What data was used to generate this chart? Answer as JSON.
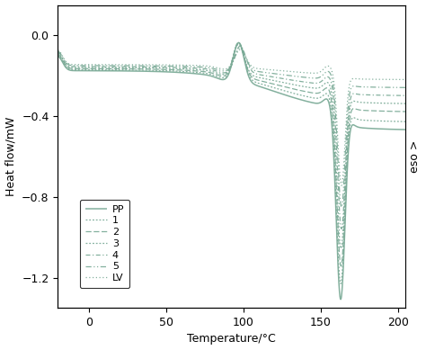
{
  "title": "",
  "xlabel": "Temperature/°C",
  "ylabel": "Heat flow/mW",
  "right_ylabel": "eso >",
  "xlim": [
    -20,
    205
  ],
  "ylim": [
    -1.35,
    0.15
  ],
  "xticks": [
    0,
    50,
    100,
    150,
    200
  ],
  "yticks": [
    0.0,
    -0.4,
    -0.8,
    -1.2
  ],
  "legend_labels": [
    "PP",
    "1",
    "2",
    "3",
    "4",
    "5",
    "LV"
  ],
  "color": "#7aaa96",
  "background_color": "#ffffff"
}
